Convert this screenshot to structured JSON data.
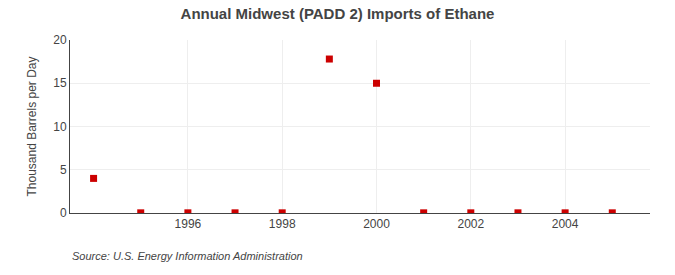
{
  "chart_data": {
    "type": "scatter",
    "title": "Annual Midwest (PADD 2) Imports of Ethane",
    "ylabel": "Thousand Barrels per Day",
    "annotations": [
      "Source: U.S. Energy Information Administration"
    ],
    "x": [
      1994,
      1995,
      1996,
      1997,
      1998,
      1999,
      2000,
      2001,
      2002,
      2003,
      2004,
      2005
    ],
    "values": [
      4.0,
      0.02,
      0.02,
      0.02,
      0.02,
      17.8,
      15.0,
      0.02,
      0.02,
      0.02,
      0.02,
      0.02
    ],
    "color": "#cc0000",
    "marker": "square",
    "xlim": [
      1993.5,
      2005.8
    ],
    "xticks": [
      1996,
      1998,
      2000,
      2002,
      2004
    ],
    "ylim": [
      0,
      20
    ],
    "yticks": [
      0,
      5,
      10,
      15,
      20
    ],
    "grid": true
  }
}
